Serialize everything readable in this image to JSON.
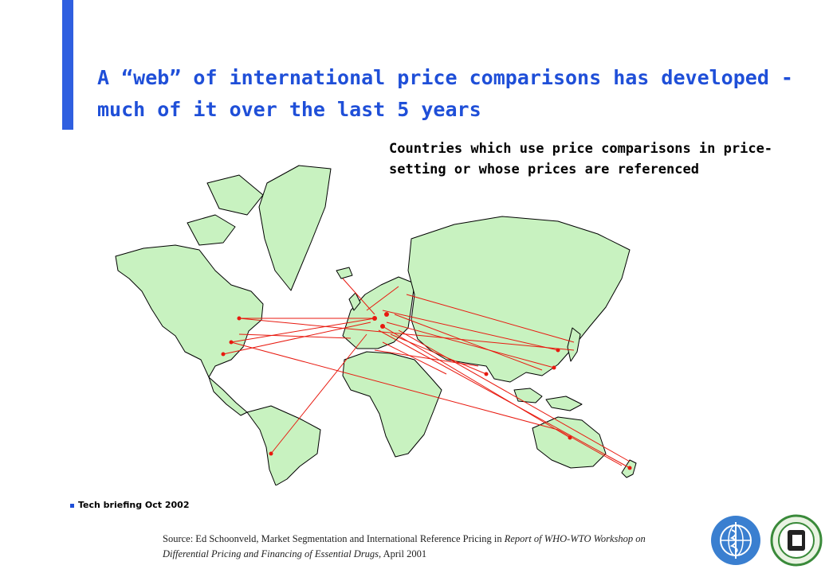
{
  "slide": {
    "title": "A “web” of international price comparisons has developed - much of it over the last 5 years",
    "caption": "Countries which use price comparisons in price-setting or whose prices are referenced",
    "footer_note": "Tech briefing Oct 2002",
    "source_prefix": "Source: Ed Schoonveld, Market Segmentation and International Reference Pricing in ",
    "source_italic": "Report of WHO-WTO Workshop on Differential Pricing and Financing of Essential Drugs",
    "source_suffix": ", April 2001"
  },
  "map": {
    "land_color": "#c8f2c0",
    "line_color": "#e8190f",
    "icon": "world-map"
  },
  "logos": {
    "left": "who-emblem-icon",
    "right": "wto-emblem-icon",
    "left_color": "#3a7fd0",
    "right_color": "#3a8a3a"
  },
  "accent_color": "#2f5fe0"
}
